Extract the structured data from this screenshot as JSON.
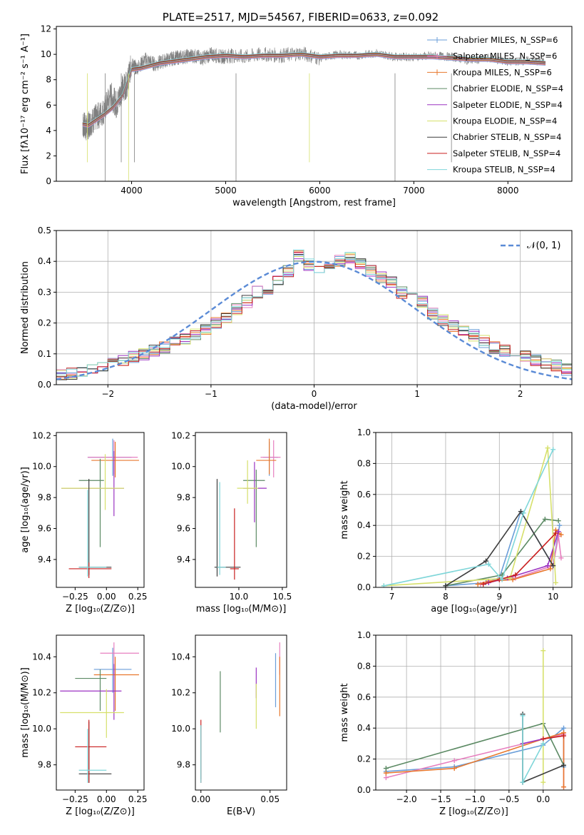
{
  "chart_data": [
    {
      "id": "spectrum",
      "type": "line",
      "title": "PLATE=2517, MJD=54567, FIBERID=0633, z=0.092",
      "xlabel": "wavelength [Angstrom, rest frame]",
      "ylabel": "Flux [fλ10⁻¹⁷ erg cm⁻² s⁻¹ A⁻¹]",
      "xlim": [
        3200,
        8680
      ],
      "ylim": [
        0,
        12.2
      ],
      "xticks": [
        4000,
        5000,
        6000,
        7000,
        8000
      ],
      "yticks": [
        0,
        2,
        4,
        6,
        8,
        10,
        12
      ],
      "grid": false,
      "legend_placement": "right",
      "observed": {
        "color": "#7f7f7f",
        "x": [
          3480,
          3520,
          3560,
          3620,
          3700,
          3780,
          3840,
          3900,
          3950,
          4000,
          4050,
          4150,
          4250,
          4350,
          4450,
          4550,
          4650,
          4750,
          4850,
          4950,
          5050,
          5200,
          5400,
          5600,
          5800,
          6000,
          6200,
          6400,
          6600,
          6800,
          7000,
          7200,
          7400,
          7600,
          7800,
          8000,
          8200,
          8400
        ],
        "y": [
          4.5,
          4.2,
          4.6,
          5.0,
          5.5,
          6.8,
          6.0,
          7.3,
          7.6,
          9.2,
          8.9,
          9.6,
          9.2,
          9.5,
          9.7,
          9.8,
          9.9,
          9.7,
          10.0,
          9.8,
          9.9,
          9.8,
          10.0,
          9.9,
          10.1,
          9.7,
          10.0,
          9.9,
          10.1,
          9.8,
          9.8,
          9.9,
          9.8,
          9.5,
          9.7,
          9.4,
          9.5,
          9.4
        ]
      },
      "models": {
        "x": [
          3480,
          3540,
          3600,
          3700,
          3800,
          3900,
          4000,
          4100,
          4200,
          4300,
          4400,
          4500,
          4600,
          4800,
          5000,
          5200,
          5400,
          5600,
          5800,
          6000,
          6200,
          6400,
          6600,
          6800,
          7000,
          7200,
          7400,
          7600,
          7800,
          8000,
          8200,
          8400
        ],
        "y": [
          4.5,
          4.4,
          4.7,
          5.2,
          5.8,
          6.7,
          8.8,
          8.9,
          9.1,
          9.3,
          9.4,
          9.5,
          9.6,
          9.8,
          9.9,
          9.8,
          9.9,
          9.9,
          10.0,
          9.8,
          9.9,
          9.9,
          10.0,
          9.8,
          9.8,
          9.8,
          9.7,
          9.6,
          9.6,
          9.4,
          9.4,
          9.3
        ]
      },
      "series": [
        {
          "name": "Chabrier MILES, N_SSP=6",
          "color": "#6a9ed9",
          "marker": "+"
        },
        {
          "name": "Salpeter MILES, N_SSP=6",
          "color": "#e77fbf",
          "marker": "+"
        },
        {
          "name": "Kroupa MILES, N_SSP=6",
          "color": "#e8782d",
          "marker": "+"
        },
        {
          "name": "Chabrier ELODIE, N_SSP=4",
          "color": "#5c8a64",
          "marker": ""
        },
        {
          "name": "Salpeter ELODIE, N_SSP=4",
          "color": "#9b33c2",
          "marker": ""
        },
        {
          "name": "Kroupa ELODIE, N_SSP=4",
          "color": "#d6e06b",
          "marker": ""
        },
        {
          "name": "Chabrier STELIB, N_SSP=4",
          "color": "#3d3d3d",
          "marker": ""
        },
        {
          "name": "Salpeter STELIB, N_SSP=4",
          "color": "#c91f1f",
          "marker": ""
        },
        {
          "name": "Kroupa STELIB, N_SSP=4",
          "color": "#7fd6d9",
          "marker": ""
        }
      ]
    },
    {
      "id": "residuals",
      "type": "line",
      "xlabel": "(data-model)/error",
      "ylabel": "Normed distribution",
      "xlim": [
        -2.5,
        2.5
      ],
      "ylim": [
        0,
        0.5
      ],
      "xticks": [
        -2,
        -1,
        0,
        1,
        2
      ],
      "yticks": [
        0.0,
        0.1,
        0.2,
        0.3,
        0.4,
        0.5
      ],
      "grid": true,
      "legend_placement": "top-right",
      "legend": "𝒩(0, 1)",
      "bin_width": 0.1,
      "bins_start": -2.5,
      "histogram": [
        0.03,
        0.035,
        0.04,
        0.05,
        0.06,
        0.07,
        0.08,
        0.09,
        0.1,
        0.11,
        0.12,
        0.14,
        0.15,
        0.165,
        0.18,
        0.2,
        0.22,
        0.245,
        0.27,
        0.3,
        0.31,
        0.34,
        0.37,
        0.42,
        0.39,
        0.38,
        0.375,
        0.4,
        0.41,
        0.39,
        0.37,
        0.35,
        0.33,
        0.3,
        0.29,
        0.27,
        0.23,
        0.21,
        0.19,
        0.17,
        0.16,
        0.14,
        0.12,
        0.11,
        0.1,
        0.09,
        0.08,
        0.07,
        0.06,
        0.05
      ]
    },
    {
      "id": "age-vs-Z",
      "type": "scatter",
      "xlabel": "Z [log₁₀(Z/Z⊙)]",
      "ylabel": "age  [log₁₀(age/yr)]",
      "xlim": [
        -0.4,
        0.3
      ],
      "ylim": [
        9.22,
        10.22
      ],
      "xticks": [
        -0.25,
        0.0,
        0.25
      ],
      "xticklabels": [
        "−0.25",
        "0.00",
        "0.25"
      ],
      "yticks": [
        9.4,
        9.6,
        9.8,
        10.0,
        10.2
      ],
      "yticklabels": [
        "9.4",
        "9.6",
        "9.8",
        "10.0",
        "10.2"
      ],
      "grid": false,
      "points": [
        {
          "x": 0.05,
          "y": 10.06,
          "xl": -0.15,
          "xh": 0.2,
          "yl": 9.94,
          "yh": 10.18,
          "color": "#6a9ed9"
        },
        {
          "x": 0.06,
          "y": 10.06,
          "xl": -0.15,
          "xh": 0.25,
          "yl": 9.95,
          "yh": 10.17,
          "color": "#e77fbf"
        },
        {
          "x": 0.07,
          "y": 10.04,
          "xl": -0.12,
          "xh": 0.26,
          "yl": 9.93,
          "yh": 10.16,
          "color": "#e8782d"
        },
        {
          "x": -0.05,
          "y": 9.91,
          "xl": -0.22,
          "xh": -0.02,
          "yl": 9.48,
          "yh": 10.05,
          "color": "#5c8a64"
        },
        {
          "x": 0.06,
          "y": 9.86,
          "xl": -0.36,
          "xh": 0.14,
          "yl": 9.68,
          "yh": 10.1,
          "color": "#9b33c2"
        },
        {
          "x": -0.01,
          "y": 9.86,
          "xl": -0.36,
          "xh": 0.14,
          "yl": 9.72,
          "yh": 10.08,
          "color": "#d6e06b"
        },
        {
          "x": -0.14,
          "y": 9.35,
          "xl": -0.22,
          "xh": 0.04,
          "yl": 9.3,
          "yh": 9.92,
          "color": "#3d3d3d"
        },
        {
          "x": -0.14,
          "y": 9.34,
          "xl": -0.3,
          "xh": 0.04,
          "yl": 9.28,
          "yh": 9.38,
          "color": "#c91f1f"
        },
        {
          "x": -0.15,
          "y": 9.35,
          "xl": -0.22,
          "xh": 0.0,
          "yl": 9.29,
          "yh": 9.85,
          "color": "#7fd6d9"
        }
      ]
    },
    {
      "id": "age-vs-mass",
      "type": "scatter",
      "xlabel": "mass [log₁₀(M/M⊙)]",
      "ylabel": "",
      "xlim": [
        9.5,
        10.55
      ],
      "ylim": [
        9.22,
        10.22
      ],
      "xticks": [
        10.0,
        10.5
      ],
      "xticklabels": [
        "10.0",
        "10.5"
      ],
      "yticks": [
        9.4,
        9.6,
        9.8,
        10.0,
        10.2
      ],
      "yticklabels": [
        "9.4",
        "9.6",
        "9.8",
        "10.0",
        "10.2"
      ],
      "grid": false,
      "points": [
        {
          "x": 10.35,
          "y": 10.06,
          "xl": 10.28,
          "xh": 10.45,
          "yl": 9.94,
          "yh": 10.16,
          "color": "#6a9ed9"
        },
        {
          "x": 10.4,
          "y": 10.06,
          "xl": 10.25,
          "xh": 10.48,
          "yl": 9.93,
          "yh": 10.17,
          "color": "#e77fbf"
        },
        {
          "x": 10.35,
          "y": 10.04,
          "xl": 10.2,
          "xh": 10.43,
          "yl": 9.95,
          "yh": 10.18,
          "color": "#e8782d"
        },
        {
          "x": 10.2,
          "y": 9.91,
          "xl": 10.05,
          "xh": 10.3,
          "yl": 9.48,
          "yh": 9.98,
          "color": "#5c8a64"
        },
        {
          "x": 10.18,
          "y": 9.86,
          "xl": 10.05,
          "xh": 10.32,
          "yl": 9.64,
          "yh": 10.03,
          "color": "#9b33c2"
        },
        {
          "x": 10.1,
          "y": 9.86,
          "xl": 9.98,
          "xh": 10.22,
          "yl": 9.76,
          "yh": 10.04,
          "color": "#d6e06b"
        },
        {
          "x": 9.75,
          "y": 9.35,
          "xl": 9.72,
          "xh": 10.02,
          "yl": 9.29,
          "yh": 9.92,
          "color": "#3d3d3d"
        },
        {
          "x": 9.95,
          "y": 9.34,
          "xl": 9.9,
          "xh": 10.0,
          "yl": 9.27,
          "yh": 9.73,
          "color": "#c91f1f"
        },
        {
          "x": 9.78,
          "y": 9.35,
          "xl": 9.75,
          "xh": 9.85,
          "yl": 9.3,
          "yh": 9.9,
          "color": "#7fd6d9"
        }
      ]
    },
    {
      "id": "weight-vs-age",
      "type": "line",
      "xlabel": "age  [log₁₀(age/yr)]",
      "ylabel": "mass weight",
      "xlim": [
        6.7,
        10.35
      ],
      "ylim": [
        0,
        1.0
      ],
      "xticks": [
        7,
        8,
        9,
        10
      ],
      "yticks": [
        0.0,
        0.2,
        0.4,
        0.6,
        0.8,
        1.0
      ],
      "yticklabels": [
        "0.0",
        "0.2",
        "0.4",
        "0.6",
        "0.8",
        "1.0"
      ],
      "grid": true,
      "series": [
        {
          "color": "#6a9ed9",
          "x": [
            8.0,
            8.75,
            9.0,
            9.4,
            10.0,
            10.12
          ],
          "y": [
            0.01,
            0.03,
            0.06,
            0.49,
            0.14,
            0.4
          ]
        },
        {
          "color": "#e77fbf",
          "x": [
            8.65,
            8.8,
            9.3,
            10.0,
            10.1,
            10.15
          ],
          "y": [
            0.02,
            0.04,
            0.06,
            0.14,
            0.33,
            0.19
          ]
        },
        {
          "color": "#e8782d",
          "x": [
            8.6,
            8.8,
            9.25,
            9.95,
            10.05,
            10.15
          ],
          "y": [
            0.02,
            0.04,
            0.05,
            0.12,
            0.37,
            0.34
          ]
        },
        {
          "color": "#5c8a64",
          "x": [
            8.0,
            9.05,
            9.85,
            10.1
          ],
          "y": [
            0.01,
            0.08,
            0.44,
            0.43
          ]
        },
        {
          "color": "#9b33c2",
          "x": [
            8.8,
            9.15,
            9.9,
            10.1
          ],
          "y": [
            0.03,
            0.06,
            0.14,
            0.36
          ]
        },
        {
          "color": "#d6e06b",
          "x": [
            6.85,
            9.2,
            9.9,
            10.05
          ],
          "y": [
            0.01,
            0.06,
            0.9,
            0.03
          ]
        },
        {
          "color": "#3d3d3d",
          "x": [
            8.0,
            8.75,
            9.4,
            10.0
          ],
          "y": [
            0.01,
            0.17,
            0.49,
            0.14
          ]
        },
        {
          "color": "#c91f1f",
          "x": [
            8.7,
            9.0,
            9.3,
            10.05
          ],
          "y": [
            0.02,
            0.05,
            0.08,
            0.35
          ]
        },
        {
          "color": "#7fd6d9",
          "x": [
            6.85,
            8.8,
            9.05,
            9.45,
            10.0
          ],
          "y": [
            0.01,
            0.15,
            0.05,
            0.48,
            0.89
          ]
        }
      ]
    },
    {
      "id": "mass-vs-Z",
      "type": "scatter",
      "xlabel": "Z [log₁₀(Z/Z⊙)]",
      "ylabel": "mass [log₁₀(M/M⊙)]",
      "xlim": [
        -0.4,
        0.3
      ],
      "ylim": [
        9.66,
        10.52
      ],
      "xticks": [
        -0.25,
        0.0,
        0.25
      ],
      "xticklabels": [
        "−0.25",
        "0.00",
        "0.25"
      ],
      "yticks": [
        9.8,
        10.0,
        10.2,
        10.4
      ],
      "yticklabels": [
        "9.8",
        "10.0",
        "10.2",
        "10.4"
      ],
      "grid": false,
      "points": [
        {
          "x": 0.05,
          "y": 10.33,
          "xl": -0.1,
          "xh": 0.2,
          "yl": 10.2,
          "yh": 10.45,
          "color": "#6a9ed9"
        },
        {
          "x": 0.06,
          "y": 10.42,
          "xl": -0.05,
          "xh": 0.26,
          "yl": 10.3,
          "yh": 10.48,
          "color": "#e77fbf"
        },
        {
          "x": 0.07,
          "y": 10.3,
          "xl": -0.1,
          "xh": 0.26,
          "yl": 10.1,
          "yh": 10.4,
          "color": "#e8782d"
        },
        {
          "x": -0.05,
          "y": 10.28,
          "xl": -0.25,
          "xh": 0.0,
          "yl": 10.1,
          "yh": 10.33,
          "color": "#5c8a64"
        },
        {
          "x": 0.06,
          "y": 10.21,
          "xl": -0.37,
          "xh": 0.12,
          "yl": 10.05,
          "yh": 10.36,
          "color": "#9b33c2"
        },
        {
          "x": 0.0,
          "y": 10.09,
          "xl": -0.37,
          "xh": 0.14,
          "yl": 9.95,
          "yh": 10.22,
          "color": "#d6e06b"
        },
        {
          "x": -0.14,
          "y": 9.75,
          "xl": -0.22,
          "xh": 0.04,
          "yl": 9.7,
          "yh": 10.04,
          "color": "#3d3d3d"
        },
        {
          "x": -0.14,
          "y": 9.9,
          "xl": -0.25,
          "xh": 0.0,
          "yl": 9.7,
          "yh": 10.05,
          "color": "#c91f1f"
        },
        {
          "x": -0.15,
          "y": 9.77,
          "xl": -0.22,
          "xh": 0.0,
          "yl": 9.7,
          "yh": 10.0,
          "color": "#7fd6d9"
        }
      ]
    },
    {
      "id": "mass-vs-ebv",
      "type": "scatter",
      "xlabel": "E(B-V)",
      "ylabel": "",
      "xlim": [
        -0.004,
        0.062
      ],
      "ylim": [
        9.66,
        10.52
      ],
      "xticks": [
        0.0,
        0.05
      ],
      "xticklabels": [
        "0.00",
        "0.05"
      ],
      "yticks": [
        9.8,
        10.0,
        10.2,
        10.4
      ],
      "yticklabels": [
        "9.8",
        "10.0",
        "10.2",
        "10.4"
      ],
      "grid": false,
      "points": [
        {
          "x": 0.054,
          "y": 10.3,
          "yl": 10.12,
          "yh": 10.42,
          "color": "#6a9ed9"
        },
        {
          "x": 0.057,
          "y": 10.4,
          "yl": 10.3,
          "yh": 10.48,
          "color": "#e77fbf"
        },
        {
          "x": 0.057,
          "y": 10.25,
          "yl": 10.07,
          "yh": 10.4,
          "color": "#e8782d"
        },
        {
          "x": 0.014,
          "y": 10.15,
          "yl": 9.98,
          "yh": 10.32,
          "color": "#5c8a64"
        },
        {
          "x": 0.04,
          "y": 10.27,
          "yl": 10.17,
          "yh": 10.34,
          "color": "#9b33c2"
        },
        {
          "x": 0.04,
          "y": 10.12,
          "yl": 10.0,
          "yh": 10.25,
          "color": "#d6e06b"
        },
        {
          "x": 0.0,
          "y": 9.8,
          "yl": 9.72,
          "yh": 10.02,
          "color": "#3d3d3d"
        },
        {
          "x": 0.0,
          "y": 9.85,
          "yl": 9.7,
          "yh": 10.05,
          "color": "#c91f1f"
        },
        {
          "x": 0.0,
          "y": 9.8,
          "yl": 9.7,
          "yh": 10.02,
          "color": "#7fd6d9"
        }
      ]
    },
    {
      "id": "weight-vs-Z",
      "type": "line",
      "xlabel": "Z [log₁₀(Z/Z⊙)]",
      "ylabel": "mass weight",
      "xlim": [
        -2.45,
        0.42
      ],
      "ylim": [
        0,
        1.0
      ],
      "xticks": [
        -2.0,
        -1.5,
        -1.0,
        -0.5,
        0.0
      ],
      "xticklabels": [
        "−2.0",
        "−1.5",
        "−1.0",
        "−0.5",
        "0.0"
      ],
      "yticks": [
        0.0,
        0.2,
        0.4,
        0.6,
        0.8,
        1.0
      ],
      "yticklabels": [
        "0.0",
        "0.2",
        "0.4",
        "0.6",
        "0.8",
        "1.0"
      ],
      "grid": true,
      "series": [
        {
          "color": "#6a9ed9",
          "x": [
            -2.3,
            -1.3,
            0.0,
            0.3,
            0.3
          ],
          "y": [
            0.12,
            0.15,
            0.29,
            0.4,
            0.15
          ]
        },
        {
          "color": "#e77fbf",
          "x": [
            -2.3,
            -1.3,
            0.0,
            0.3,
            0.3
          ],
          "y": [
            0.08,
            0.19,
            0.33,
            0.36,
            0.02
          ]
        },
        {
          "color": "#e8782d",
          "x": [
            -2.3,
            -1.3,
            0.0,
            0.3,
            0.3
          ],
          "y": [
            0.11,
            0.14,
            0.33,
            0.37,
            0.02
          ]
        },
        {
          "color": "#5c8a64",
          "x": [
            -2.3,
            0.0,
            0.3
          ],
          "y": [
            0.14,
            0.43,
            0.16
          ]
        },
        {
          "color": "#9b33c2",
          "x": [
            -0.3,
            0.0
          ],
          "y": [
            0.3,
            0.33
          ]
        },
        {
          "color": "#d6e06b",
          "x": [
            0.0,
            0.0
          ],
          "y": [
            0.9,
            0.05
          ]
        },
        {
          "color": "#3d3d3d",
          "x": [
            -0.3,
            -0.3,
            0.3
          ],
          "y": [
            0.49,
            0.05,
            0.16
          ]
        },
        {
          "color": "#c91f1f",
          "x": [
            0.0,
            0.3
          ],
          "y": [
            0.33,
            0.35
          ]
        },
        {
          "color": "#7fd6d9",
          "x": [
            -0.3,
            -0.3,
            0.0
          ],
          "y": [
            0.48,
            0.05,
            0.3
          ]
        }
      ]
    }
  ]
}
